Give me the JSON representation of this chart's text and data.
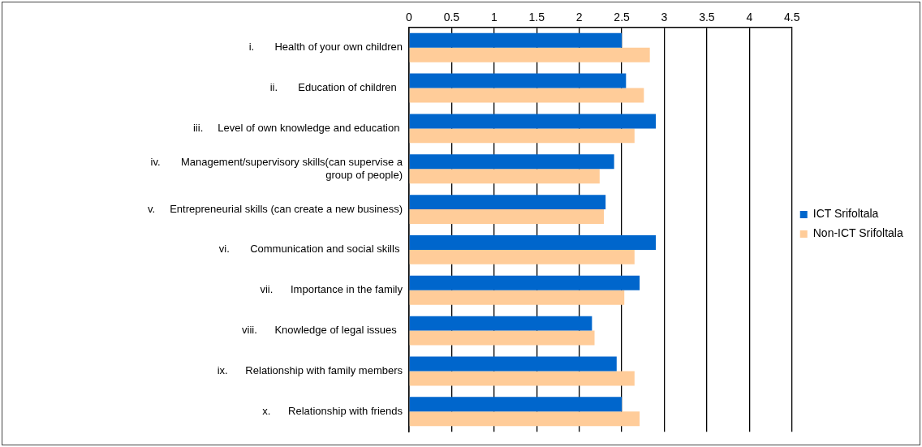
{
  "chart_data": {
    "type": "bar",
    "orientation": "horizontal",
    "categories": [
      "i.       Health of your own children",
      "ii.       Education of children  ",
      "iii.     Level of own knowledge and education ",
      "iv.       Management/supervisory skills(can supervise a\ngroup of people)",
      "v.     Entrepreneurial skills (can create a new business)",
      "vi.       Communication and social skills ",
      "vii.      Importance in the family",
      "viii.      Knowledge of legal issues  ",
      "ix.      Relationship with family members",
      "x.      Relationship with friends"
    ],
    "series": [
      {
        "name": "ICT Srifoltala",
        "color": "#0066cc",
        "values": [
          2.5,
          2.55,
          2.9,
          2.41,
          2.31,
          2.9,
          2.71,
          2.15,
          2.44,
          2.5
        ]
      },
      {
        "name": "Non-ICT Srifoltala",
        "color": "#ffcc99",
        "values": [
          2.83,
          2.76,
          2.65,
          2.24,
          2.29,
          2.65,
          2.53,
          2.18,
          2.65,
          2.71
        ]
      }
    ],
    "xlim": [
      0,
      4.5
    ],
    "xticks": [
      0,
      0.5,
      1,
      1.5,
      2,
      2.5,
      3,
      3.5,
      4,
      4.5
    ],
    "grid": "x",
    "legend": "right"
  }
}
